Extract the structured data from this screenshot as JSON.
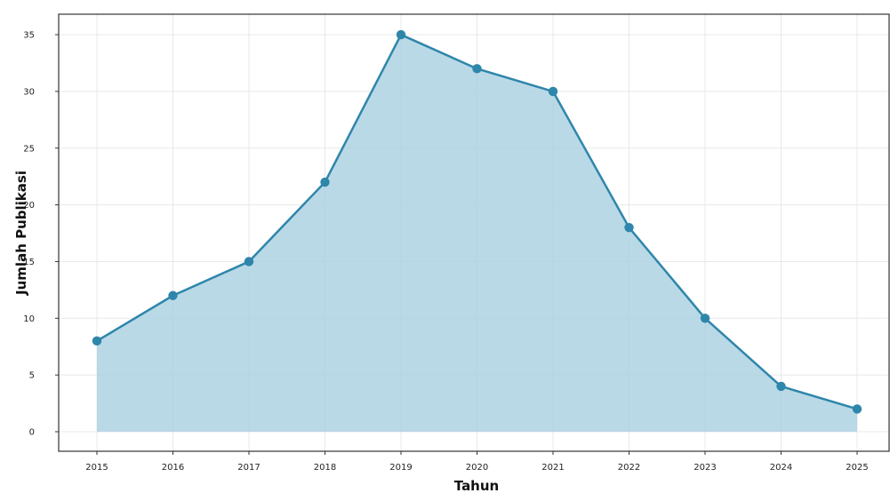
{
  "chart_data": {
    "type": "area",
    "title": "",
    "xlabel": "Tahun",
    "ylabel": "Jumlah Publikasi",
    "x": [
      "2015",
      "2016",
      "2017",
      "2018",
      "2019",
      "2020",
      "2021",
      "2022",
      "2023",
      "2024",
      "2025"
    ],
    "series": [
      {
        "values": [
          8,
          12,
          15,
          22,
          35,
          32,
          30,
          18,
          10,
          4,
          2
        ]
      }
    ],
    "ylim": [
      -1.7,
      36.8
    ],
    "yticks": [
      "0",
      "5",
      "10",
      "15",
      "20",
      "25",
      "30",
      "35"
    ],
    "grid": true,
    "legend": "none",
    "colors": {
      "line": "#2e86ab",
      "fill": "#a9cfe0",
      "marker": "#2e86ab",
      "grid": "#e8e8e8",
      "frame": "#333333"
    }
  }
}
